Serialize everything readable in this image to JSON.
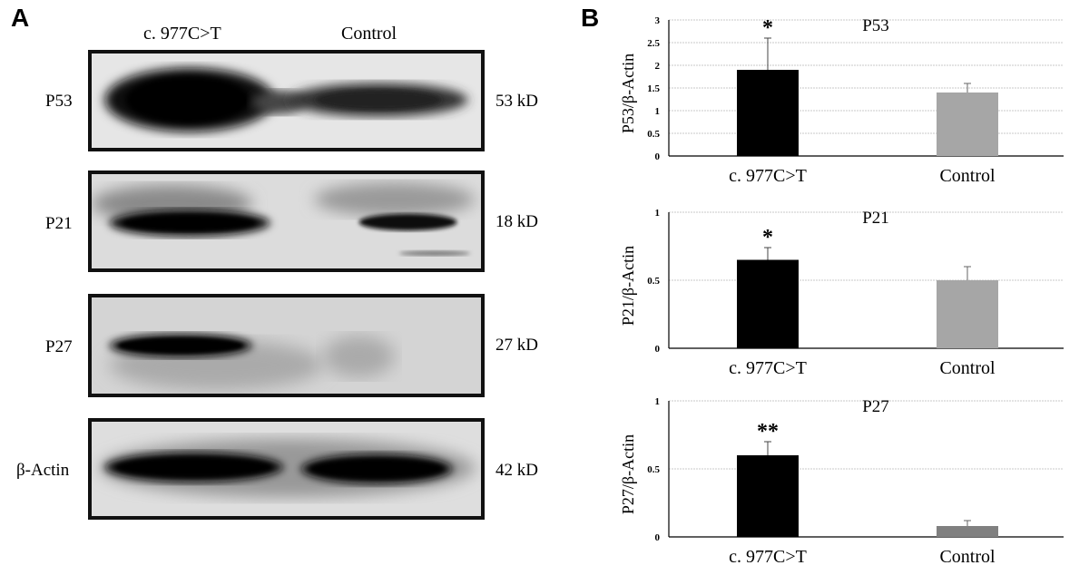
{
  "panels": {
    "a_label": "A",
    "b_label": "B"
  },
  "blots": {
    "columns": [
      "c. 977C>T",
      "Control"
    ],
    "rows": [
      {
        "label": "P53",
        "kd": "53 kD"
      },
      {
        "label": "P21",
        "kd": "18 kD"
      },
      {
        "label": "P27",
        "kd": "27 kD"
      },
      {
        "label": "β-Actin",
        "kd": "42 kD"
      }
    ]
  },
  "chart_data": [
    {
      "type": "bar",
      "title": "P53",
      "ylabel": "P53/β-Actin",
      "categories": [
        "c. 977C>T",
        "Control"
      ],
      "values": [
        1.9,
        1.4
      ],
      "errors": [
        0.7,
        0.2
      ],
      "annotations": [
        "*",
        ""
      ],
      "bar_colors": [
        "#000000",
        "#a6a6a6"
      ],
      "ylim": [
        0,
        3
      ],
      "yticks": [
        "0",
        "0.5",
        "1",
        "1.5",
        "2",
        "2.5",
        "3"
      ],
      "grid": true
    },
    {
      "type": "bar",
      "title": "P21",
      "ylabel": "P21/β-Actin",
      "categories": [
        "c. 977C>T",
        "Control"
      ],
      "values": [
        0.65,
        0.5
      ],
      "errors": [
        0.09,
        0.1
      ],
      "annotations": [
        "*",
        ""
      ],
      "bar_colors": [
        "#000000",
        "#a6a6a6"
      ],
      "ylim": [
        0,
        1
      ],
      "yticks": [
        "0",
        "0.5",
        "1"
      ],
      "grid": true
    },
    {
      "type": "bar",
      "title": "P27",
      "ylabel": "P27/β-Actin",
      "categories": [
        "c. 977C>T",
        "Control"
      ],
      "values": [
        0.6,
        0.08
      ],
      "errors": [
        0.1,
        0.04
      ],
      "annotations": [
        "**",
        ""
      ],
      "bar_colors": [
        "#000000",
        "#808080"
      ],
      "ylim": [
        0,
        1
      ],
      "yticks": [
        "0",
        "0.5",
        "1"
      ],
      "grid": true
    }
  ]
}
